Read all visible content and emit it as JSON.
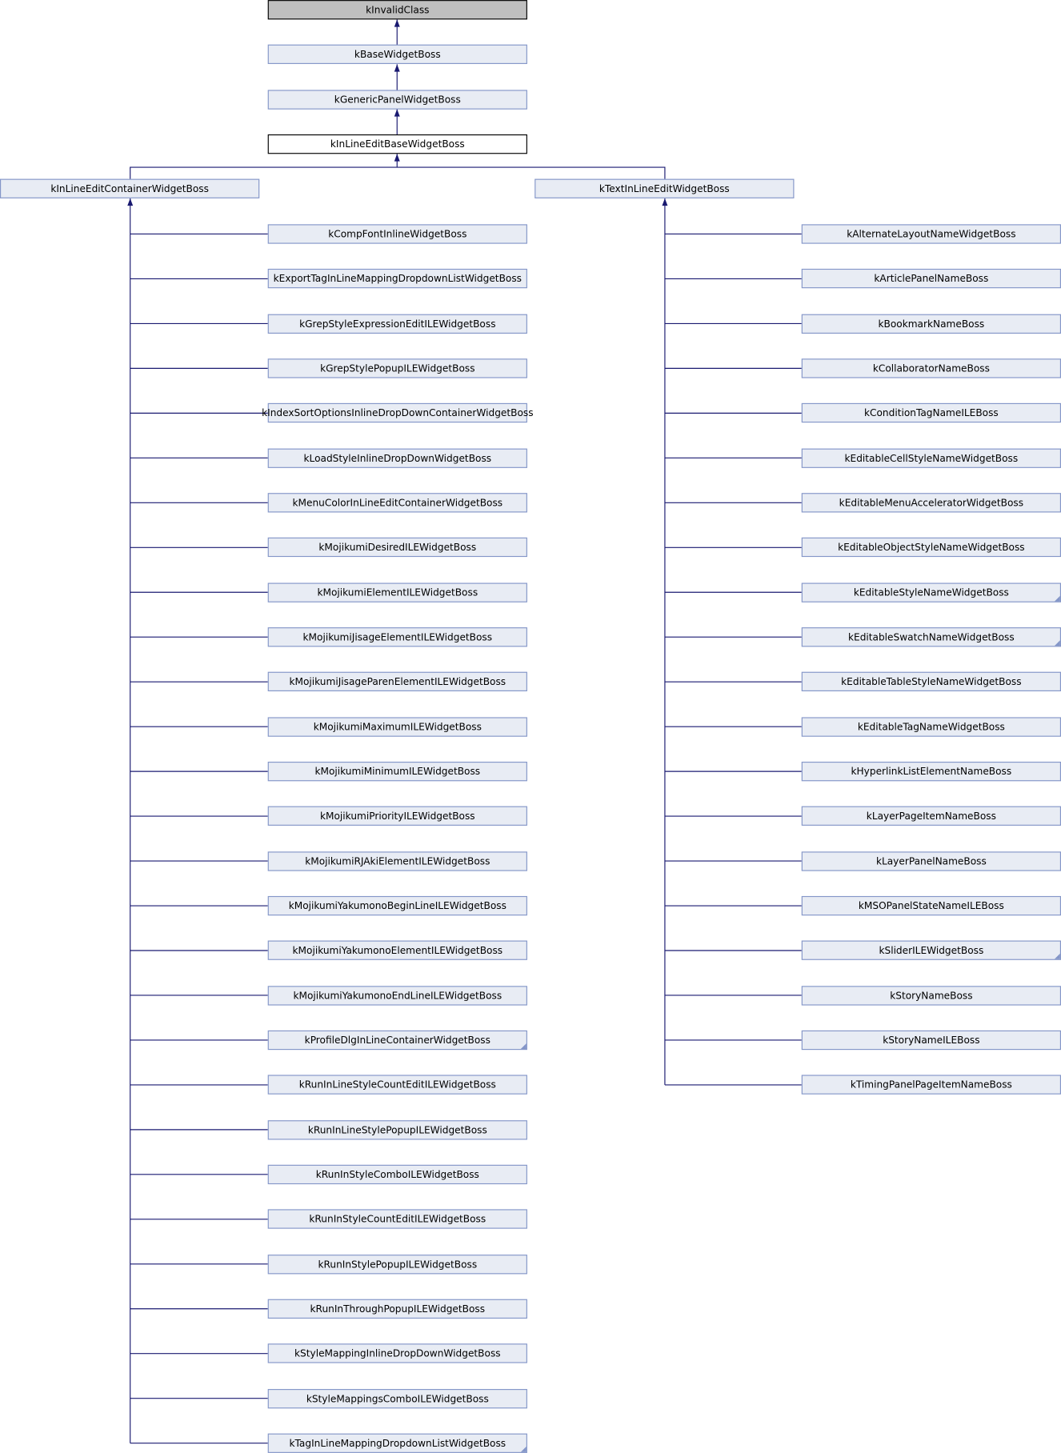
{
  "chain": [
    "kInvalidClass",
    "kBaseWidgetBoss",
    "kGenericPanelWidgetBoss",
    "kInLineEditBaseWidgetBoss"
  ],
  "left": {
    "label": "kInLineEditContainerWidgetBoss",
    "children": [
      "kCompFontInlineWidgetBoss",
      "kExportTagInLineMappingDropdownListWidgetBoss",
      "kGrepStyleExpressionEditILEWidgetBoss",
      "kGrepStylePopupILEWidgetBoss",
      "kIndexSortOptionsInlineDropDownContainerWidgetBoss",
      "kLoadStyleInlineDropDownWidgetBoss",
      "kMenuColorInLineEditContainerWidgetBoss",
      "kMojikumiDesiredILEWidgetBoss",
      "kMojikumiElementILEWidgetBoss",
      "kMojikumiJisageElementILEWidgetBoss",
      "kMojikumiJisageParenElementILEWidgetBoss",
      "kMojikumiMaximumILEWidgetBoss",
      "kMojikumiMinimumILEWidgetBoss",
      "kMojikumiPriorityILEWidgetBoss",
      "kMojikumiRJAkiElementILEWidgetBoss",
      "kMojikumiYakumonoBeginLineILEWidgetBoss",
      "kMojikumiYakumonoElementILEWidgetBoss",
      "kMojikumiYakumonoEndLineILEWidgetBoss",
      "kProfileDlgInLineContainerWidgetBoss",
      "kRunInLineStyleCountEditILEWidgetBoss",
      "kRunInLineStylePopupILEWidgetBoss",
      "kRunInStyleComboILEWidgetBoss",
      "kRunInStyleCountEditILEWidgetBoss",
      "kRunInStylePopupILEWidgetBoss",
      "kRunInThroughPopupILEWidgetBoss",
      "kStyleMappingInlineDropDownWidgetBoss",
      "kStyleMappingsComboILEWidgetBoss",
      "kTagInLineMappingDropdownListWidgetBoss"
    ]
  },
  "right": {
    "label": "kTextInLineEditWidgetBoss",
    "children": [
      "kAlternateLayoutNameWidgetBoss",
      "kArticlePanelNameBoss",
      "kBookmarkNameBoss",
      "kCollaboratorNameBoss",
      "kConditionTagNameILEBoss",
      "kEditableCellStyleNameWidgetBoss",
      "kEditableMenuAcceleratorWidgetBoss",
      "kEditableObjectStyleNameWidgetBoss",
      "kEditableStyleNameWidgetBoss",
      "kEditableSwatchNameWidgetBoss",
      "kEditableTableStyleNameWidgetBoss",
      "kEditableTagNameWidgetBoss",
      "kHyperlinkListElementNameBoss",
      "kLayerPageItemNameBoss",
      "kLayerPanelNameBoss",
      "kMSOPanelStateNameILEBoss",
      "kSliderILEWidgetBoss",
      "kStoryNameBoss",
      "kStoryNameILEBoss",
      "kTimingPanelPageItemNameBoss"
    ]
  }
}
